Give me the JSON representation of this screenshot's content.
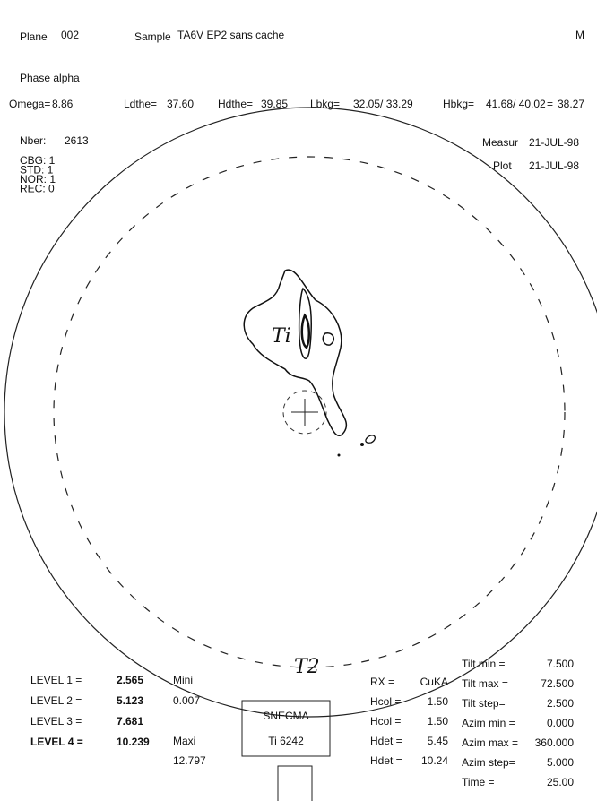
{
  "header": {
    "plane_label": "Plane",
    "plane": "002",
    "sample_label": "Sample",
    "sample": "TA6V EP2 sans cache",
    "mark": "M"
  },
  "phase": "Phase alpha",
  "parameters": [
    {
      "label": "Omega=",
      "value": "8.86"
    },
    {
      "label": "Ldthe=",
      "value": "37.60"
    },
    {
      "label": "Hdthe=",
      "value": "39.85"
    },
    {
      "label": "Lbkg=",
      "value": "32.05/ 33.29"
    },
    {
      "label": "Hbkg=",
      "value": "41.68/ 40.02"
    },
    {
      "label": "=",
      "value": "38.27"
    }
  ],
  "nber": {
    "label": "Nber:",
    "value": "2613"
  },
  "flags": [
    "CBG: 1",
    "STD: 1",
    "NOR: 1",
    "REC: 0"
  ],
  "dates": [
    {
      "label": "Measur",
      "value": "21-JUL-98"
    },
    {
      "label": "Plot",
      "value": "21-JUL-98"
    }
  ],
  "levels": [
    {
      "label": "LEVEL 1 =",
      "value": "2.565"
    },
    {
      "label": "LEVEL 2 =",
      "value": "5.123"
    },
    {
      "label": "LEVEL 3 =",
      "value": "7.681"
    },
    {
      "label": "LEVEL 4 =",
      "value": "10.239"
    }
  ],
  "range": [
    {
      "label": "Mini",
      "value": "0.007"
    },
    {
      "label": "Maxi",
      "value": "12.797"
    }
  ],
  "box": [
    "SNECMA",
    "Ti 6242"
  ],
  "instrument": [
    {
      "label": "RX =",
      "value": "CuKA"
    },
    {
      "label": "Hcol =",
      "value": "1.50"
    },
    {
      "label": "Hcol =",
      "value": "1.50"
    },
    {
      "label": "Hdet =",
      "value": "5.45"
    },
    {
      "label": "Hdet =",
      "value": "10.24"
    }
  ],
  "scan": [
    {
      "label": "Tilt min =",
      "value": "7.500"
    },
    {
      "label": "Tilt max =",
      "value": "72.500"
    },
    {
      "label": "Tilt step=",
      "value": "2.500"
    },
    {
      "label": "Azim min =",
      "value": "0.000"
    },
    {
      "label": "Azim max =",
      "value": "360.000"
    },
    {
      "label": "Azim step=",
      "value": "5.000"
    },
    {
      "label": "Time =",
      "value": "25.00"
    }
  ],
  "annotations": [
    "Ti",
    "T2"
  ]
}
